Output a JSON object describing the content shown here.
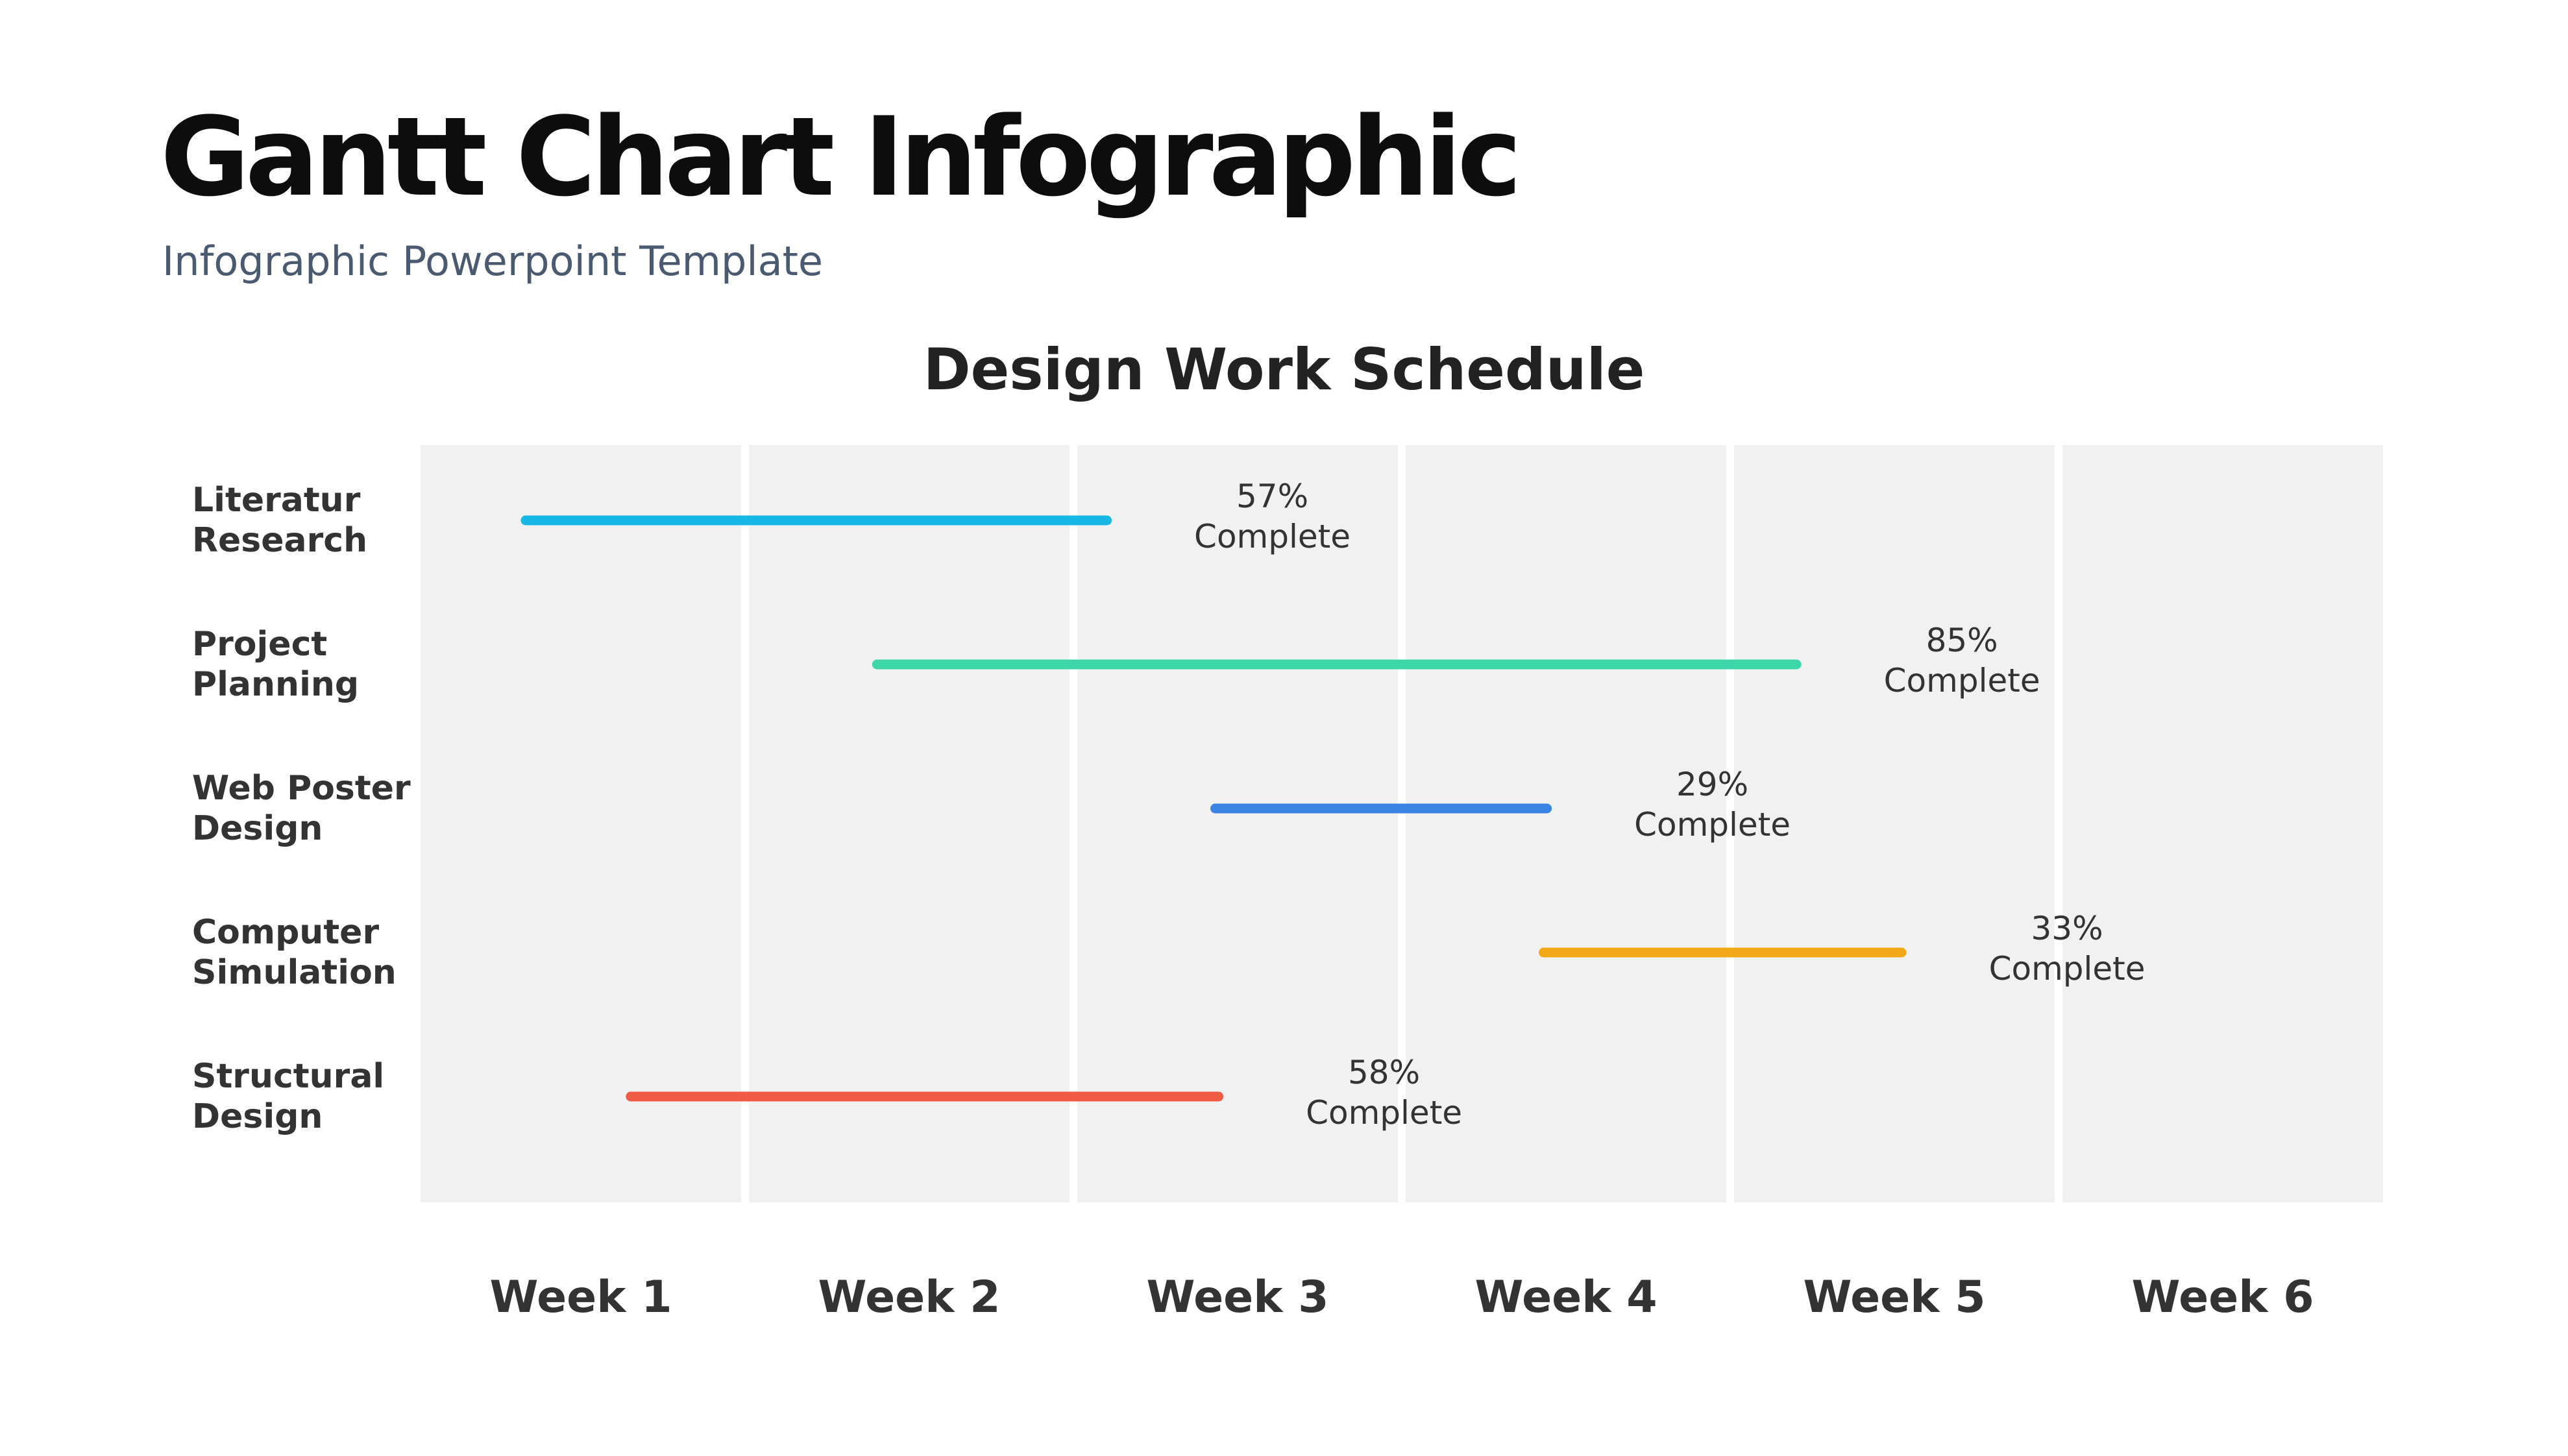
{
  "slide": {
    "title": "Gantt Chart Infographic",
    "subtitle": "Infographic Powerpoint Template"
  },
  "colors": {
    "background": "#ffffff",
    "grid_column": "#f1f1f1",
    "text": "#333333",
    "subtitle": "#4a5a70"
  },
  "chart_data": {
    "type": "gantt",
    "title": "Design Work Schedule",
    "xlabel": "",
    "ylabel": "",
    "x_unit": "week",
    "xlim": [
      0,
      6
    ],
    "categories": [
      "Week 1",
      "Week 2",
      "Week 3",
      "Week 4",
      "Week 5",
      "Week 6"
    ],
    "tasks": [
      {
        "label_lines": [
          "Literatur",
          "Research"
        ],
        "start": 0.32,
        "end": 2.09,
        "percent": "57%",
        "status": "Complete",
        "color": "#17b8e6"
      },
      {
        "label_lines": [
          "Project",
          "Planning"
        ],
        "start": 1.39,
        "end": 4.19,
        "percent": "85%",
        "status": "Complete",
        "color": "#3dd6a8"
      },
      {
        "label_lines": [
          "Web Poster",
          "Design"
        ],
        "start": 2.42,
        "end": 3.43,
        "percent": "29%",
        "status": "Complete",
        "color": "#3a85e3"
      },
      {
        "label_lines": [
          "Computer",
          "Simulation"
        ],
        "start": 3.42,
        "end": 4.51,
        "percent": "33%",
        "status": "Complete",
        "color": "#f2a817"
      },
      {
        "label_lines": [
          "Structural",
          "Design"
        ],
        "start": 0.64,
        "end": 2.43,
        "percent": "58%",
        "status": "Complete",
        "color": "#ef5b45"
      }
    ]
  }
}
